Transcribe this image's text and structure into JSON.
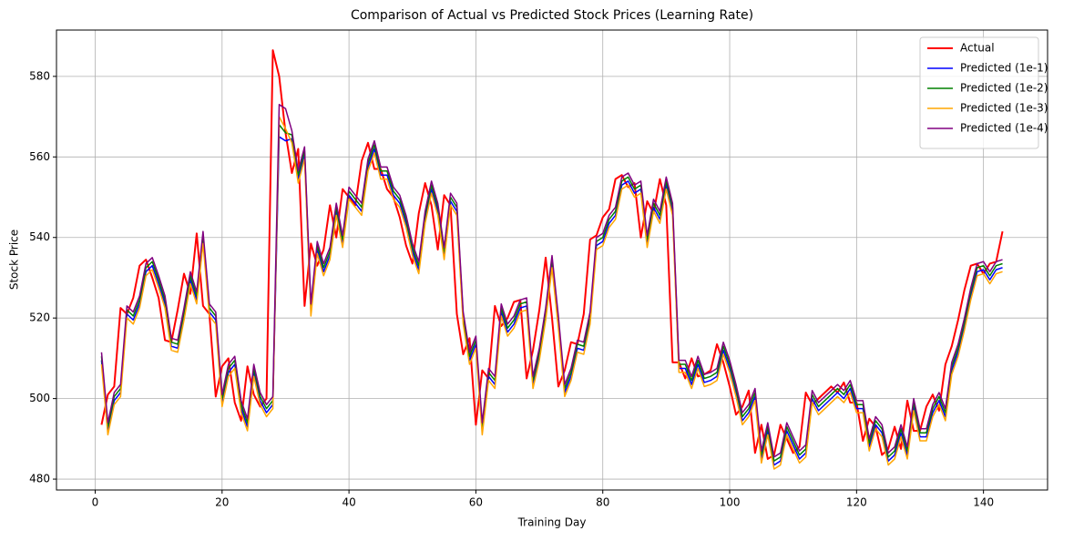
{
  "chart_data": {
    "type": "line",
    "title": "Comparison of Actual vs Predicted Stock Prices (Learning Rate)",
    "x_label": "Training Day",
    "y_label": "Stock Price",
    "x": [
      1,
      2,
      3,
      4,
      5,
      6,
      7,
      8,
      9,
      10,
      11,
      12,
      13,
      14,
      15,
      16,
      17,
      18,
      19,
      20,
      21,
      22,
      23,
      24,
      25,
      26,
      27,
      28,
      29,
      30,
      31,
      32,
      33,
      34,
      35,
      36,
      37,
      38,
      39,
      40,
      41,
      42,
      43,
      44,
      45,
      46,
      47,
      48,
      49,
      50,
      51,
      52,
      53,
      54,
      55,
      56,
      57,
      58,
      59,
      60,
      61,
      62,
      63,
      64,
      65,
      66,
      67,
      68,
      69,
      70,
      71,
      72,
      73,
      74,
      75,
      76,
      77,
      78,
      79,
      80,
      81,
      82,
      83,
      84,
      85,
      86,
      87,
      88,
      89,
      90,
      91,
      92,
      93,
      94,
      95,
      96,
      97,
      98,
      99,
      100,
      101,
      102,
      103,
      104,
      105,
      106,
      107,
      108,
      109,
      110,
      111,
      112,
      113,
      114,
      115,
      116,
      117,
      118,
      119,
      120,
      121,
      122,
      123,
      124,
      125,
      126,
      127,
      128,
      129,
      130,
      131,
      132,
      133,
      134,
      135,
      136,
      137,
      138,
      139,
      140,
      141,
      142,
      143
    ],
    "series": [
      {
        "name": "Actual",
        "color": "#ff0000",
        "width": 2,
        "values": [
          493.5,
          501,
          503,
          522.5,
          521,
          525,
          533,
          534.5,
          530,
          525,
          514.5,
          514,
          522,
          531,
          526,
          541,
          523,
          521,
          500.5,
          508,
          510,
          499,
          494.5,
          508,
          501,
          498,
          500,
          586.5,
          580,
          566,
          556,
          562,
          523,
          538.5,
          533,
          537,
          548,
          540,
          552,
          550,
          548,
          559,
          563.5,
          557,
          557,
          552,
          550,
          545,
          538,
          533.5,
          546,
          553.5,
          548,
          537,
          550.5,
          548,
          521,
          511,
          515,
          493.5,
          507,
          505,
          523,
          518,
          520,
          524,
          524.5,
          505,
          512,
          522,
          535,
          520,
          503,
          507,
          514,
          513.5,
          521,
          539.5,
          540.5,
          545,
          547,
          554.5,
          555.5,
          552.5,
          553.5,
          540,
          549,
          546,
          554.5,
          548,
          509,
          509,
          505,
          510,
          505.5,
          506,
          507,
          513.5,
          509,
          503,
          496,
          498,
          502,
          486.5,
          493.5,
          485,
          486,
          493.5,
          490,
          486.5,
          488,
          501.5,
          498.5,
          500,
          501.5,
          503,
          501.5,
          504,
          499,
          499,
          489.5,
          495,
          493,
          486,
          487.5,
          493,
          487.5,
          499.5,
          492,
          492,
          498,
          501,
          497,
          508.5,
          513,
          519.5,
          527,
          533,
          533.5,
          531,
          533.5,
          534,
          541.5
        ]
      },
      {
        "name": "Predicted (1e-1)",
        "color": "#0000ff",
        "width": 1.5,
        "values": [
          509.5,
          492,
          499.5,
          501.5,
          521,
          519.5,
          523.5,
          531.5,
          533,
          528.5,
          523.5,
          513,
          512.5,
          520.5,
          529.5,
          524.5,
          539.5,
          521.5,
          519.5,
          499,
          506.5,
          508.5,
          497.5,
          493,
          506.5,
          499.5,
          496.5,
          498.5,
          565,
          564,
          564.5,
          554.5,
          560.5,
          521.5,
          537,
          531.5,
          535.5,
          546.5,
          538.5,
          550.5,
          548.5,
          546.5,
          557.5,
          562,
          555.5,
          555.5,
          550.5,
          548.5,
          543.5,
          536.5,
          532,
          544.5,
          552,
          546.5,
          535.5,
          549,
          546.5,
          519.5,
          509.5,
          513.5,
          492,
          505.5,
          503.5,
          521.5,
          516.5,
          518.5,
          522.5,
          523,
          503.5,
          510.5,
          520.5,
          533.5,
          518.5,
          501.5,
          505.5,
          512.5,
          512,
          519.5,
          538,
          539,
          543.5,
          545.5,
          553,
          554,
          551,
          552,
          538.5,
          547.5,
          544.5,
          553,
          546.5,
          507.5,
          507.5,
          503.5,
          508.5,
          504,
          504.5,
          505.5,
          512,
          507.5,
          501.5,
          494.5,
          496.5,
          500.5,
          485,
          492,
          483.5,
          484.5,
          492,
          488.5,
          485,
          486.5,
          500,
          497,
          498.5,
          500,
          501.5,
          500,
          502.5,
          497.5,
          497.5,
          488,
          493.5,
          491.5,
          484.5,
          486,
          491.5,
          486,
          498,
          490.5,
          490.5,
          496.5,
          499.5,
          495.5,
          507,
          511.5,
          518,
          525.5,
          531.5,
          532,
          529.5,
          532,
          532.5
        ]
      },
      {
        "name": "Predicted (1e-2)",
        "color": "#008000",
        "width": 1.5,
        "values": [
          510.5,
          493,
          500.5,
          502.5,
          522,
          520.5,
          524.5,
          532.5,
          534,
          529.5,
          524.5,
          514,
          513.5,
          521.5,
          530.5,
          525.5,
          540.5,
          522.5,
          520.5,
          500,
          507.5,
          509.5,
          498.5,
          494,
          507.5,
          500.5,
          497.5,
          499.5,
          568,
          566,
          565.5,
          555.5,
          561.5,
          522.5,
          538,
          532.5,
          536.5,
          547.5,
          539.5,
          551.5,
          549.5,
          547.5,
          558.5,
          563,
          556.5,
          556.5,
          551.5,
          549.5,
          544.5,
          537.5,
          533,
          545.5,
          553,
          547.5,
          536.5,
          550,
          547.5,
          520.5,
          510.5,
          514.5,
          493,
          506.5,
          504.5,
          522.5,
          517.5,
          519.5,
          523.5,
          524,
          504.5,
          511.5,
          521.5,
          534.5,
          519.5,
          502.5,
          506.5,
          513.5,
          513,
          520.5,
          539,
          540,
          544.5,
          546.5,
          554,
          555,
          552,
          553,
          539.5,
          548.5,
          545.5,
          554,
          547.5,
          508.5,
          508.5,
          504.5,
          509.5,
          505,
          505.5,
          506.5,
          513,
          508.5,
          502.5,
          495.5,
          497.5,
          501.5,
          486,
          493,
          484.5,
          485.5,
          493,
          489.5,
          486,
          487.5,
          501,
          498,
          499.5,
          501,
          502.5,
          501,
          503.5,
          498.5,
          498.5,
          489,
          494.5,
          492.5,
          485.5,
          487,
          492.5,
          487,
          499,
          491.5,
          491.5,
          497.5,
          500.5,
          496.5,
          508,
          512.5,
          519,
          526.5,
          532.5,
          533,
          530.5,
          533,
          533.5
        ]
      },
      {
        "name": "Predicted (1e-3)",
        "color": "#ffa500",
        "width": 1.5,
        "values": [
          508.5,
          491,
          498.5,
          500.5,
          520,
          518.5,
          522.5,
          530.5,
          532,
          527.5,
          522.5,
          512,
          511.5,
          519.5,
          528.5,
          523.5,
          538.5,
          520.5,
          518.5,
          498,
          505.5,
          507.5,
          496.5,
          492,
          505.5,
          498.5,
          495.5,
          497.5,
          570,
          567,
          563.5,
          553.5,
          559.5,
          520.5,
          536,
          530.5,
          534.5,
          545.5,
          537.5,
          549.5,
          547.5,
          545.5,
          556.5,
          561,
          554.5,
          554.5,
          549.5,
          547.5,
          542.5,
          535.5,
          531,
          543.5,
          551,
          545.5,
          534.5,
          548,
          545.5,
          518.5,
          508.5,
          512.5,
          491,
          504.5,
          502.5,
          520.5,
          515.5,
          517.5,
          521.5,
          522,
          502.5,
          509.5,
          519.5,
          532.5,
          517.5,
          500.5,
          504.5,
          511.5,
          511,
          518.5,
          537,
          538,
          542.5,
          544.5,
          552,
          553,
          550,
          551,
          537.5,
          546.5,
          543.5,
          552,
          545.5,
          506.5,
          506.5,
          502.5,
          507.5,
          503,
          503.5,
          504.5,
          511,
          506.5,
          500.5,
          493.5,
          495.5,
          499.5,
          484,
          491,
          482.5,
          483.5,
          491,
          487.5,
          484,
          485.5,
          499,
          496,
          497.5,
          499,
          500.5,
          499,
          501.5,
          496.5,
          496.5,
          487,
          492.5,
          490.5,
          483.5,
          485,
          490.5,
          485,
          497,
          489.5,
          489.5,
          495.5,
          498.5,
          494.5,
          506,
          510.5,
          517,
          524.5,
          530.5,
          531,
          528.5,
          531,
          531.5
        ]
      },
      {
        "name": "Predicted (1e-4)",
        "color": "#800080",
        "width": 1.5,
        "values": [
          511.5,
          494,
          501.5,
          503.5,
          523,
          521.5,
          525.5,
          533.5,
          535,
          530.5,
          525.5,
          515,
          514.5,
          522.5,
          531.5,
          526.5,
          541.5,
          523.5,
          521.5,
          501,
          508.5,
          510.5,
          499.5,
          495,
          508.5,
          501.5,
          498.5,
          500.5,
          573,
          572,
          566.5,
          556.5,
          562.5,
          523.5,
          539,
          533.5,
          537.5,
          548.5,
          540.5,
          552.5,
          550.5,
          548.5,
          559.5,
          564,
          557.5,
          557.5,
          552.5,
          550.5,
          545.5,
          538.5,
          534,
          546.5,
          554,
          548.5,
          537.5,
          551,
          548.5,
          521.5,
          511.5,
          515.5,
          494,
          507.5,
          505.5,
          523.5,
          518.5,
          520.5,
          524.5,
          525,
          505.5,
          512.5,
          522.5,
          535.5,
          520.5,
          503.5,
          507.5,
          514.5,
          514,
          521.5,
          540,
          541,
          545.5,
          547.5,
          555,
          556,
          553,
          554,
          540.5,
          549.5,
          546.5,
          555,
          548.5,
          509.5,
          509.5,
          505.5,
          510.5,
          506,
          506.5,
          507.5,
          514,
          509.5,
          503.5,
          496.5,
          498.5,
          502.5,
          487,
          494,
          485.5,
          486.5,
          494,
          490.5,
          487,
          488.5,
          502,
          499,
          500.5,
          502,
          503.5,
          502,
          504.5,
          499.5,
          499.5,
          490,
          495.5,
          493.5,
          486.5,
          488,
          493.5,
          488,
          500,
          492.5,
          492.5,
          498.5,
          501.5,
          497.5,
          509,
          513.5,
          520,
          527.5,
          533.5,
          534,
          531.5,
          534,
          534.5
        ]
      }
    ],
    "xlim": [
      -6.1,
      150.1
    ],
    "xticks": [
      0,
      20,
      40,
      60,
      80,
      100,
      120,
      140
    ],
    "ylim": [
      477.3,
      591.5
    ],
    "yticks": [
      480,
      500,
      520,
      540,
      560,
      580
    ],
    "grid": true,
    "legend": "upper right"
  }
}
